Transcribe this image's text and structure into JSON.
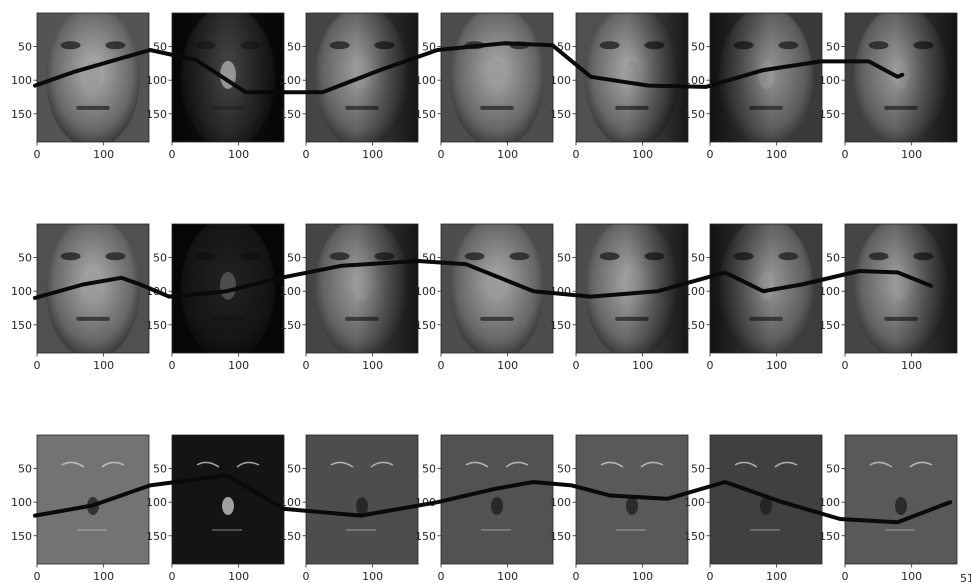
{
  "figure": {
    "rows": 3,
    "cols": 7
  },
  "chart_data": {
    "type": "image-grid",
    "description_free": true,
    "xticks": [
      0,
      100
    ],
    "yticks": [
      50,
      100,
      150
    ],
    "xlim": [
      0,
      168
    ],
    "ylim": [
      192,
      0
    ],
    "grid": false,
    "legend": "none",
    "rows": [
      {
        "row": 1,
        "panels": [
          {
            "style": "face",
            "shade": 0.55,
            "shadow": "none"
          },
          {
            "style": "face-dark",
            "shade": 0.12,
            "shadow": "left-right"
          },
          {
            "style": "face",
            "shade": 0.45,
            "shadow": "right"
          },
          {
            "style": "face",
            "shade": 0.5,
            "shadow": "none"
          },
          {
            "style": "face",
            "shade": 0.52,
            "shadow": "right"
          },
          {
            "style": "face",
            "shade": 0.38,
            "shadow": "left"
          },
          {
            "style": "face",
            "shade": 0.42,
            "shadow": "right"
          }
        ]
      },
      {
        "row": 2,
        "panels": [
          {
            "style": "face",
            "shade": 0.52,
            "shadow": "none"
          },
          {
            "style": "face-dark",
            "shade": 0.1,
            "shadow": "all"
          },
          {
            "style": "face",
            "shade": 0.45,
            "shadow": "right"
          },
          {
            "style": "face",
            "shade": 0.5,
            "shadow": "none"
          },
          {
            "style": "face",
            "shade": 0.5,
            "shadow": "right"
          },
          {
            "style": "face",
            "shade": 0.4,
            "shadow": "left"
          },
          {
            "style": "face",
            "shade": 0.45,
            "shadow": "right"
          }
        ]
      },
      {
        "row": 3,
        "panels": [
          {
            "style": "residual",
            "shade": 0.45
          },
          {
            "style": "residual-dark",
            "shade": 0.08
          },
          {
            "style": "residual",
            "shade": 0.3
          },
          {
            "style": "residual",
            "shade": 0.32
          },
          {
            "style": "residual",
            "shade": 0.35
          },
          {
            "style": "residual",
            "shade": 0.25
          },
          {
            "style": "residual",
            "shade": 0.35
          }
        ]
      }
    ],
    "strokes": [
      [
        [
          0,
          108
        ],
        [
          40,
          88
        ],
        [
          120,
          55
        ],
        [
          168,
          70
        ],
        [
          220,
          118
        ],
        [
          300,
          118
        ],
        [
          360,
          85
        ],
        [
          420,
          55
        ],
        [
          490,
          45
        ],
        [
          540,
          48
        ],
        [
          580,
          95
        ],
        [
          640,
          108
        ],
        [
          700,
          110
        ],
        [
          760,
          85
        ],
        [
          820,
          72
        ],
        [
          870,
          72
        ],
        [
          900,
          95
        ],
        [
          905,
          92
        ]
      ],
      [
        [
          0,
          110
        ],
        [
          50,
          90
        ],
        [
          90,
          80
        ],
        [
          110,
          90
        ],
        [
          140,
          108
        ],
        [
          200,
          100
        ],
        [
          250,
          82
        ],
        [
          320,
          62
        ],
        [
          400,
          55
        ],
        [
          450,
          60
        ],
        [
          520,
          100
        ],
        [
          580,
          108
        ],
        [
          650,
          100
        ],
        [
          720,
          72
        ],
        [
          760,
          100
        ],
        [
          800,
          90
        ],
        [
          860,
          70
        ],
        [
          900,
          72
        ],
        [
          935,
          92
        ]
      ],
      [
        [
          0,
          120
        ],
        [
          60,
          105
        ],
        [
          120,
          75
        ],
        [
          200,
          60
        ],
        [
          260,
          110
        ],
        [
          340,
          120
        ],
        [
          420,
          100
        ],
        [
          480,
          80
        ],
        [
          520,
          70
        ],
        [
          560,
          75
        ],
        [
          600,
          90
        ],
        [
          660,
          95
        ],
        [
          720,
          70
        ],
        [
          780,
          100
        ],
        [
          840,
          125
        ],
        [
          900,
          130
        ],
        [
          955,
          100
        ]
      ]
    ]
  },
  "colors": {
    "axis": "#262626",
    "stroke": "#0a0a0a",
    "bg": "#ffffff"
  },
  "overflow_glyph": "51"
}
